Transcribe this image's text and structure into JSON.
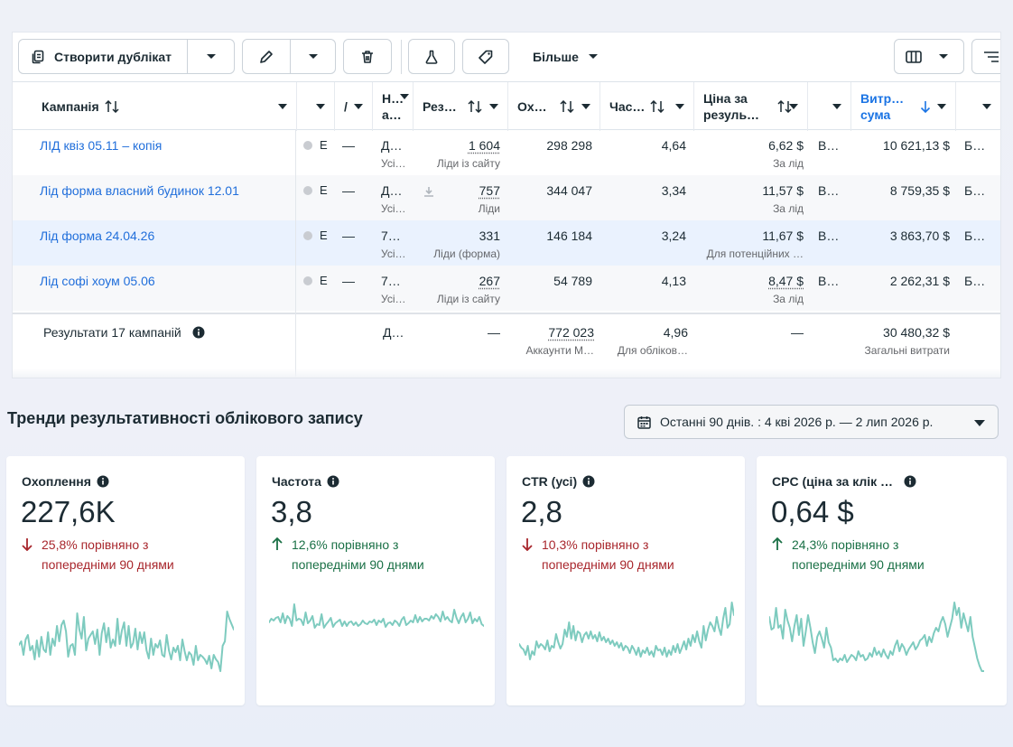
{
  "toolbar": {
    "duplicate_label": "Створити дублікат",
    "more_label": "Більше"
  },
  "columns": {
    "campaign": "Кампанія",
    "c4": "Н… а…",
    "results": "Рез…",
    "reach": "Ох…",
    "frequency": "Час…",
    "cost_per_result": "Ціна за резуль…",
    "amount_spent": "Витр… сума"
  },
  "rows": [
    {
      "name": "ЛІД квіз 05.11 – копія",
      "status": "Е",
      "dash": "—",
      "c4": "Д…",
      "c4_sub": "Усі…",
      "results": "1 604",
      "results_sub": "Ліди із сайту",
      "reach": "298 298",
      "frequency": "4,64",
      "cpr": "6,62 $",
      "cpr_sub": "За лід",
      "c9": "В…",
      "spent": "10 621,13 $",
      "c11": "Б…"
    },
    {
      "name": "Лід форма власний будинок 12.01",
      "status": "Е",
      "dash": "—",
      "c4": "Д…",
      "c4_sub": "Усі…",
      "results": "757",
      "results_sub": "Ліди",
      "reach": "344 047",
      "frequency": "3,34",
      "cpr": "11,57 $",
      "cpr_sub": "За лід",
      "c9": "В…",
      "spent": "8 759,35 $",
      "c11": "Б…"
    },
    {
      "name": "Лід форма 24.04.26",
      "status": "Е",
      "dash": "—",
      "c4": "7…",
      "c4_sub": "Усі…",
      "results": "331",
      "results_sub": "Ліди (форма)",
      "reach": "146 184",
      "frequency": "3,24",
      "cpr": "11,67 $",
      "cpr_sub": "Для потенційних …",
      "c9": "В…",
      "spent": "3 863,70 $",
      "c11": "Б…"
    },
    {
      "name": "Лід софі хоум 05.06",
      "status": "Е",
      "dash": "—",
      "c4": "7…",
      "c4_sub": "Усі…",
      "results": "267",
      "results_sub": "Ліди із сайту",
      "reach": "54 789",
      "frequency": "4,13",
      "cpr": "8,47 $",
      "cpr_sub": "За лід",
      "c9": "В…",
      "spent": "2 262,31 $",
      "c11": "Б…"
    }
  ],
  "summary": {
    "label": "Результати 17 кампаній",
    "c4": "Д…",
    "results": "—",
    "reach": "772 023",
    "reach_sub": "Аккаунти М…",
    "frequency": "4,96",
    "frequency_sub": "Для обліков…",
    "cpr": "—",
    "spent": "30 480,32 $",
    "spent_sub": "Загальні витрати"
  },
  "trends": {
    "title": "Тренди результативності облікового запису",
    "date_range": "Останні 90 днів. : 4 кві 2026 р. — 2 лип 2026 р.",
    "cards": [
      {
        "title": "Охоплення",
        "value": "227,6K",
        "delta": "25,8% порівняно з попередніми 90 днями",
        "direction": "down",
        "trend": [
          41,
          45,
          30,
          47,
          52,
          35,
          40,
          25,
          46,
          28,
          50,
          36,
          33,
          55,
          30,
          48,
          40,
          62,
          45,
          63,
          68,
          56,
          28,
          40,
          42,
          30,
          76,
          58,
          48,
          72,
          35,
          48,
          52,
          56,
          42,
          58,
          30,
          54,
          65,
          44,
          60,
          38,
          47,
          40,
          70,
          42,
          57,
          66,
          40,
          62,
          38,
          43,
          59,
          36,
          55,
          43,
          55,
          35,
          26,
          48,
          30,
          42,
          38,
          46,
          30,
          28,
          52,
          35,
          25,
          38,
          33,
          40,
          24,
          47,
          34,
          24,
          33,
          30,
          19,
          40,
          24,
          30,
          28,
          25,
          20,
          29,
          15,
          30,
          25,
          22,
          12,
          40,
          45,
          78,
          70,
          64,
          58
        ]
      },
      {
        "title": "Частота",
        "value": "3,8",
        "delta": "12,6% порівняно з попередніми 90 днями",
        "direction": "up",
        "trend": [
          66,
          70,
          68,
          71,
          72,
          66,
          76,
          65,
          73,
          70,
          62,
          86,
          68,
          70,
          69,
          63,
          77,
          65,
          68,
          73,
          60,
          64,
          63,
          75,
          60,
          64,
          67,
          71,
          61,
          65,
          67,
          69,
          62,
          67,
          62,
          66,
          67,
          63,
          66,
          62,
          64,
          68,
          65,
          64,
          67,
          66,
          69,
          63,
          68,
          66,
          70,
          61,
          65,
          66,
          63,
          68,
          66,
          62,
          69,
          72,
          63,
          65,
          68,
          66,
          74,
          66,
          72,
          67,
          70,
          70,
          68,
          73,
          70,
          75,
          72,
          67,
          78,
          69,
          72,
          68,
          66,
          80,
          71,
          65,
          72,
          76,
          66,
          70,
          77,
          65,
          70,
          67,
          72,
          64,
          62
        ]
      },
      {
        "title": "CTR (усі)",
        "value": "2,8",
        "delta": "10,3% порівняно з попередніми 90 днями",
        "direction": "down",
        "trend": [
          42,
          38,
          36,
          30,
          40,
          25,
          34,
          30,
          45,
          38,
          42,
          40,
          36,
          46,
          34,
          40,
          38,
          53,
          44,
          37,
          42,
          58,
          50,
          66,
          48,
          62,
          46,
          56,
          54,
          44,
          52,
          55,
          48,
          56,
          48,
          52,
          45,
          55,
          46,
          50,
          44,
          48,
          42,
          46,
          40,
          44,
          38,
          43,
          35,
          40,
          38,
          32,
          40,
          36,
          30,
          38,
          28,
          35,
          32,
          38,
          30,
          34,
          28,
          40,
          35,
          36,
          30,
          38,
          28,
          35,
          30,
          40,
          33,
          42,
          32,
          38,
          45,
          36,
          48,
          40,
          52,
          44,
          56,
          45,
          38,
          62,
          46,
          58,
          66,
          62,
          56,
          72,
          60,
          52,
          70,
          82,
          60,
          64,
          88,
          74
        ]
      },
      {
        "title": "CPC (ціна за клік …",
        "value": "0,64 $",
        "delta": "24,3% порівняно з попередніми 90 днями",
        "direction": "up",
        "trend": [
          72,
          58,
          60,
          82,
          60,
          63,
          48,
          80,
          68,
          60,
          45,
          62,
          74,
          52,
          70,
          40,
          56,
          74,
          60,
          44,
          32,
          50,
          56,
          48,
          38,
          60,
          44,
          38,
          24,
          26,
          22,
          26,
          24,
          30,
          22,
          26,
          30,
          28,
          24,
          34,
          28,
          30,
          24,
          26,
          32,
          28,
          38,
          30,
          34,
          28,
          36,
          30,
          26,
          34,
          30,
          40,
          46,
          34,
          42,
          38,
          30,
          36,
          40,
          44,
          36,
          40,
          46,
          48,
          52,
          40,
          50,
          44,
          54,
          60,
          56,
          66,
          72,
          64,
          50,
          60,
          70,
          88,
          74,
          82,
          60,
          76,
          66,
          56,
          72,
          50,
          38,
          26,
          18,
          12,
          12
        ]
      }
    ]
  },
  "colors": {
    "link": "#216fdb",
    "negative": "#a8262c",
    "positive": "#1a7046",
    "sparkline": "#7ecbbf"
  }
}
